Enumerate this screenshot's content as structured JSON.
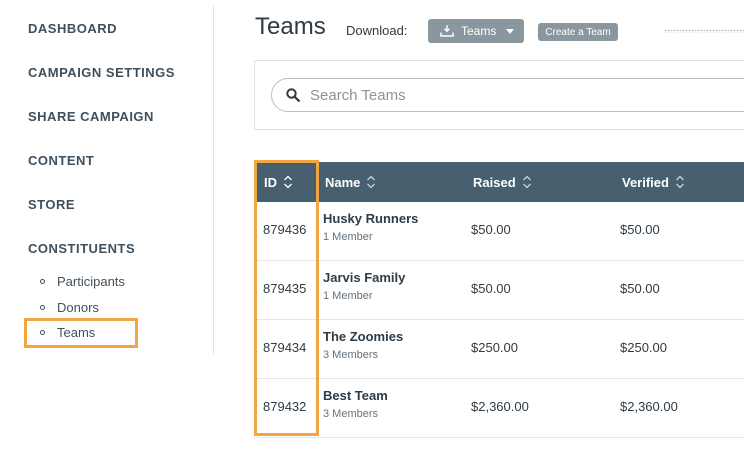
{
  "sidebar": {
    "nav": [
      "DASHBOARD",
      "CAMPAIGN SETTINGS",
      "SHARE CAMPAIGN",
      "CONTENT",
      "STORE",
      "CONSTITUENTS"
    ],
    "sub_items": [
      "Participants",
      "Donors",
      "Teams"
    ],
    "active_sub": "Teams"
  },
  "header": {
    "title": "Teams",
    "download_label": "Download:",
    "download_button": "Teams",
    "create_button": "Create a Team"
  },
  "search": {
    "placeholder": "Search Teams"
  },
  "table": {
    "columns": [
      "ID",
      "Name",
      "Raised",
      "Verified"
    ],
    "rows": [
      {
        "id": "879436",
        "name": "Husky Runners",
        "members": "1 Member",
        "raised": "$50.00",
        "verified": "$50.00"
      },
      {
        "id": "879435",
        "name": "Jarvis Family",
        "members": "1 Member",
        "raised": "$50.00",
        "verified": "$50.00"
      },
      {
        "id": "879434",
        "name": "The Zoomies",
        "members": "3 Members",
        "raised": "$250.00",
        "verified": "$250.00"
      },
      {
        "id": "879432",
        "name": "Best Team",
        "members": "3 Members",
        "raised": "$2,360.00",
        "verified": "$2,360.00"
      }
    ]
  },
  "colors": {
    "header_bg": "#46606f",
    "highlight": "#f3a443",
    "button_bg": "#8a979f"
  },
  "icons": {
    "download": "download-tray-icon",
    "caret": "chevron-down-icon",
    "search": "search-icon",
    "sort": "sort-arrows-icon"
  }
}
